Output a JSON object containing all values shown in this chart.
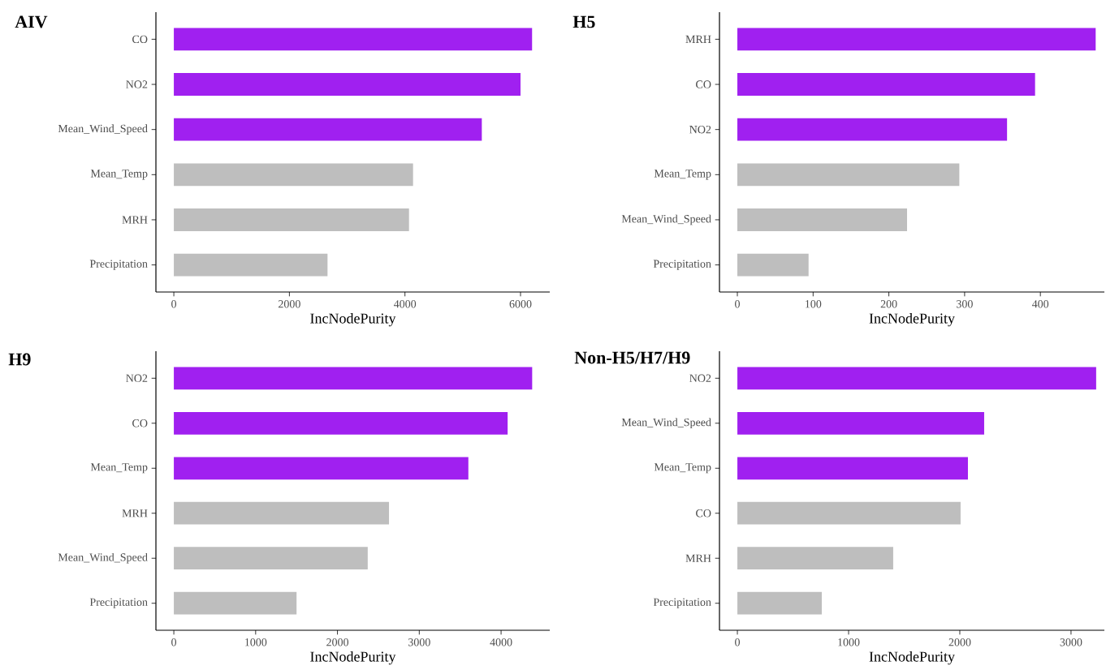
{
  "chart_data": [
    {
      "type": "bar",
      "orientation": "horizontal",
      "title": "AIV",
      "xlabel": "IncNodePurity",
      "categories": [
        "CO",
        "NO2",
        "Mean_Wind_Speed",
        "Mean_Temp",
        "MRH",
        "Precipitation"
      ],
      "values": [
        6200,
        6000,
        5330,
        4140,
        4070,
        2660
      ],
      "colors": [
        "#a020f0",
        "#a020f0",
        "#a020f0",
        "#bebebe",
        "#bebebe",
        "#bebebe"
      ],
      "xlim": [
        -310,
        6506
      ],
      "xticks": [
        0,
        2000,
        4000,
        6000
      ]
    },
    {
      "type": "bar",
      "orientation": "horizontal",
      "title": "H5",
      "xlabel": "IncNodePurity",
      "categories": [
        "MRH",
        "CO",
        "NO2",
        "Mean_Temp",
        "Mean_Wind_Speed",
        "Precipitation"
      ],
      "values": [
        473,
        393,
        356,
        293,
        224,
        94
      ],
      "colors": [
        "#a020f0",
        "#a020f0",
        "#a020f0",
        "#bebebe",
        "#bebebe",
        "#bebebe"
      ],
      "xlim": [
        -23.6,
        484.5
      ],
      "xticks": [
        0,
        100,
        200,
        300,
        400
      ]
    },
    {
      "type": "bar",
      "orientation": "horizontal",
      "title": "H9",
      "xlabel": "IncNodePurity",
      "categories": [
        "NO2",
        "CO",
        "Mean_Temp",
        "MRH",
        "Mean_Wind_Speed",
        "Precipitation"
      ],
      "values": [
        4380,
        4080,
        3600,
        2630,
        2370,
        1500
      ],
      "colors": [
        "#a020f0",
        "#a020f0",
        "#a020f0",
        "#bebebe",
        "#bebebe",
        "#bebebe"
      ],
      "xlim": [
        -219,
        4595
      ],
      "xticks": [
        0,
        1000,
        2000,
        3000,
        4000
      ]
    },
    {
      "type": "bar",
      "orientation": "horizontal",
      "title": "Non-H5/H7/H9",
      "xlabel": "IncNodePurity",
      "categories": [
        "NO2",
        "Mean_Wind_Speed",
        "Mean_Temp",
        "CO",
        "MRH",
        "Precipitation"
      ],
      "values": [
        3226,
        2219,
        2073,
        2007,
        1401,
        759
      ],
      "colors": [
        "#a020f0",
        "#a020f0",
        "#a020f0",
        "#bebebe",
        "#bebebe",
        "#bebebe"
      ],
      "xlim": [
        -161,
        3300
      ],
      "xticks": [
        0,
        1000,
        2000,
        3000
      ]
    }
  ]
}
